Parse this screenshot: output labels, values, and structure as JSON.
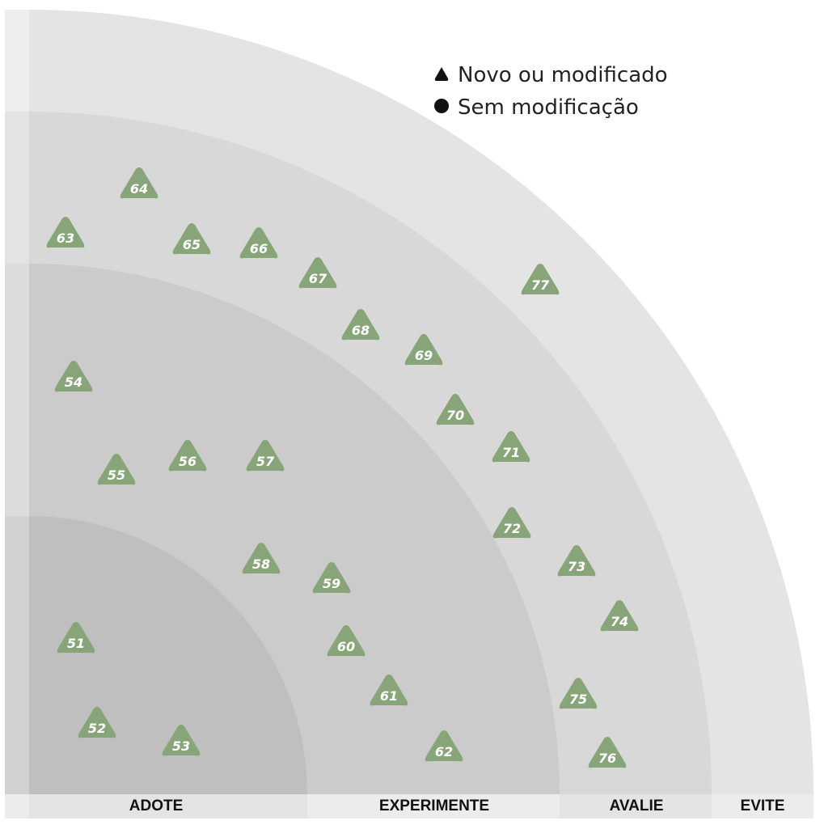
{
  "colors": {
    "ring_adote": "#bfbfbf",
    "ring_experimente": "#cbcbcb",
    "ring_avalie": "#d8d8d8",
    "ring_evite": "#e4e4e4",
    "left_strip": "#e9e9e9",
    "label_band": "#ececec",
    "blip": "#88a57a",
    "blip_text": "#ffffff",
    "legend_marker": "#111111"
  },
  "legend": {
    "new_or_modified": "Novo ou modificado",
    "no_change": "Sem modificação"
  },
  "rings": [
    {
      "id": "adote",
      "label": "ADOTE"
    },
    {
      "id": "experimente",
      "label": "EXPERIMENTE"
    },
    {
      "id": "avalie",
      "label": "AVALIE"
    },
    {
      "id": "evite",
      "label": "EVITE"
    }
  ],
  "blips": [
    {
      "number": "51",
      "ring": "ADOTE",
      "status": "new-or-modified"
    },
    {
      "number": "52",
      "ring": "ADOTE",
      "status": "new-or-modified"
    },
    {
      "number": "53",
      "ring": "ADOTE",
      "status": "new-or-modified"
    },
    {
      "number": "54",
      "ring": "EXPERIMENTE",
      "status": "new-or-modified"
    },
    {
      "number": "55",
      "ring": "EXPERIMENTE",
      "status": "new-or-modified"
    },
    {
      "number": "56",
      "ring": "EXPERIMENTE",
      "status": "new-or-modified"
    },
    {
      "number": "57",
      "ring": "EXPERIMENTE",
      "status": "new-or-modified"
    },
    {
      "number": "58",
      "ring": "EXPERIMENTE",
      "status": "new-or-modified"
    },
    {
      "number": "59",
      "ring": "EXPERIMENTE",
      "status": "new-or-modified"
    },
    {
      "number": "60",
      "ring": "EXPERIMENTE",
      "status": "new-or-modified"
    },
    {
      "number": "61",
      "ring": "EXPERIMENTE",
      "status": "new-or-modified"
    },
    {
      "number": "62",
      "ring": "EXPERIMENTE",
      "status": "new-or-modified"
    },
    {
      "number": "63",
      "ring": "AVALIE",
      "status": "new-or-modified"
    },
    {
      "number": "64",
      "ring": "AVALIE",
      "status": "new-or-modified"
    },
    {
      "number": "65",
      "ring": "AVALIE",
      "status": "new-or-modified"
    },
    {
      "number": "66",
      "ring": "AVALIE",
      "status": "new-or-modified"
    },
    {
      "number": "67",
      "ring": "AVALIE",
      "status": "new-or-modified"
    },
    {
      "number": "68",
      "ring": "AVALIE",
      "status": "new-or-modified"
    },
    {
      "number": "69",
      "ring": "AVALIE",
      "status": "new-or-modified"
    },
    {
      "number": "70",
      "ring": "AVALIE",
      "status": "new-or-modified"
    },
    {
      "number": "71",
      "ring": "AVALIE",
      "status": "new-or-modified"
    },
    {
      "number": "72",
      "ring": "AVALIE",
      "status": "new-or-modified"
    },
    {
      "number": "73",
      "ring": "AVALIE",
      "status": "new-or-modified"
    },
    {
      "number": "74",
      "ring": "AVALIE",
      "status": "new-or-modified"
    },
    {
      "number": "75",
      "ring": "AVALIE",
      "status": "new-or-modified"
    },
    {
      "number": "76",
      "ring": "AVALIE",
      "status": "new-or-modified"
    },
    {
      "number": "77",
      "ring": "EVITE",
      "status": "new-or-modified"
    }
  ]
}
